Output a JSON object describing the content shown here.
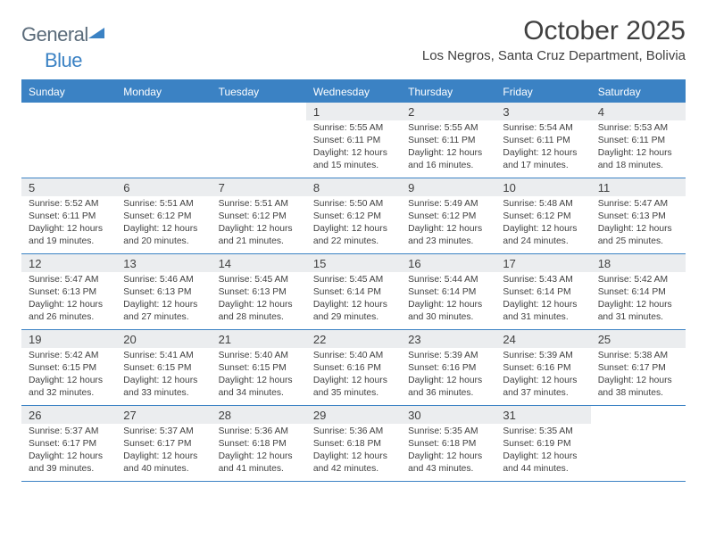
{
  "brand": {
    "part1": "General",
    "part2": "Blue",
    "color1": "#5a6b7a",
    "color2": "#3b82c4"
  },
  "title": "October 2025",
  "location": "Los Negros, Santa Cruz Department, Bolivia",
  "colors": {
    "accent": "#3b82c4",
    "weekday_text": "#ffffff",
    "daynum_bg": "#ebedef",
    "text": "#404040",
    "bg": "#ffffff"
  },
  "weekdays": [
    "Sunday",
    "Monday",
    "Tuesday",
    "Wednesday",
    "Thursday",
    "Friday",
    "Saturday"
  ],
  "weeks": [
    [
      null,
      null,
      null,
      {
        "n": "1",
        "sr": "5:55 AM",
        "ss": "6:11 PM",
        "dl": "12 hours and 15 minutes."
      },
      {
        "n": "2",
        "sr": "5:55 AM",
        "ss": "6:11 PM",
        "dl": "12 hours and 16 minutes."
      },
      {
        "n": "3",
        "sr": "5:54 AM",
        "ss": "6:11 PM",
        "dl": "12 hours and 17 minutes."
      },
      {
        "n": "4",
        "sr": "5:53 AM",
        "ss": "6:11 PM",
        "dl": "12 hours and 18 minutes."
      }
    ],
    [
      {
        "n": "5",
        "sr": "5:52 AM",
        "ss": "6:11 PM",
        "dl": "12 hours and 19 minutes."
      },
      {
        "n": "6",
        "sr": "5:51 AM",
        "ss": "6:12 PM",
        "dl": "12 hours and 20 minutes."
      },
      {
        "n": "7",
        "sr": "5:51 AM",
        "ss": "6:12 PM",
        "dl": "12 hours and 21 minutes."
      },
      {
        "n": "8",
        "sr": "5:50 AM",
        "ss": "6:12 PM",
        "dl": "12 hours and 22 minutes."
      },
      {
        "n": "9",
        "sr": "5:49 AM",
        "ss": "6:12 PM",
        "dl": "12 hours and 23 minutes."
      },
      {
        "n": "10",
        "sr": "5:48 AM",
        "ss": "6:12 PM",
        "dl": "12 hours and 24 minutes."
      },
      {
        "n": "11",
        "sr": "5:47 AM",
        "ss": "6:13 PM",
        "dl": "12 hours and 25 minutes."
      }
    ],
    [
      {
        "n": "12",
        "sr": "5:47 AM",
        "ss": "6:13 PM",
        "dl": "12 hours and 26 minutes."
      },
      {
        "n": "13",
        "sr": "5:46 AM",
        "ss": "6:13 PM",
        "dl": "12 hours and 27 minutes."
      },
      {
        "n": "14",
        "sr": "5:45 AM",
        "ss": "6:13 PM",
        "dl": "12 hours and 28 minutes."
      },
      {
        "n": "15",
        "sr": "5:45 AM",
        "ss": "6:14 PM",
        "dl": "12 hours and 29 minutes."
      },
      {
        "n": "16",
        "sr": "5:44 AM",
        "ss": "6:14 PM",
        "dl": "12 hours and 30 minutes."
      },
      {
        "n": "17",
        "sr": "5:43 AM",
        "ss": "6:14 PM",
        "dl": "12 hours and 31 minutes."
      },
      {
        "n": "18",
        "sr": "5:42 AM",
        "ss": "6:14 PM",
        "dl": "12 hours and 31 minutes."
      }
    ],
    [
      {
        "n": "19",
        "sr": "5:42 AM",
        "ss": "6:15 PM",
        "dl": "12 hours and 32 minutes."
      },
      {
        "n": "20",
        "sr": "5:41 AM",
        "ss": "6:15 PM",
        "dl": "12 hours and 33 minutes."
      },
      {
        "n": "21",
        "sr": "5:40 AM",
        "ss": "6:15 PM",
        "dl": "12 hours and 34 minutes."
      },
      {
        "n": "22",
        "sr": "5:40 AM",
        "ss": "6:16 PM",
        "dl": "12 hours and 35 minutes."
      },
      {
        "n": "23",
        "sr": "5:39 AM",
        "ss": "6:16 PM",
        "dl": "12 hours and 36 minutes."
      },
      {
        "n": "24",
        "sr": "5:39 AM",
        "ss": "6:16 PM",
        "dl": "12 hours and 37 minutes."
      },
      {
        "n": "25",
        "sr": "5:38 AM",
        "ss": "6:17 PM",
        "dl": "12 hours and 38 minutes."
      }
    ],
    [
      {
        "n": "26",
        "sr": "5:37 AM",
        "ss": "6:17 PM",
        "dl": "12 hours and 39 minutes."
      },
      {
        "n": "27",
        "sr": "5:37 AM",
        "ss": "6:17 PM",
        "dl": "12 hours and 40 minutes."
      },
      {
        "n": "28",
        "sr": "5:36 AM",
        "ss": "6:18 PM",
        "dl": "12 hours and 41 minutes."
      },
      {
        "n": "29",
        "sr": "5:36 AM",
        "ss": "6:18 PM",
        "dl": "12 hours and 42 minutes."
      },
      {
        "n": "30",
        "sr": "5:35 AM",
        "ss": "6:18 PM",
        "dl": "12 hours and 43 minutes."
      },
      {
        "n": "31",
        "sr": "5:35 AM",
        "ss": "6:19 PM",
        "dl": "12 hours and 44 minutes."
      },
      null
    ]
  ],
  "labels": {
    "sunrise": "Sunrise:",
    "sunset": "Sunset:",
    "daylight": "Daylight:"
  }
}
